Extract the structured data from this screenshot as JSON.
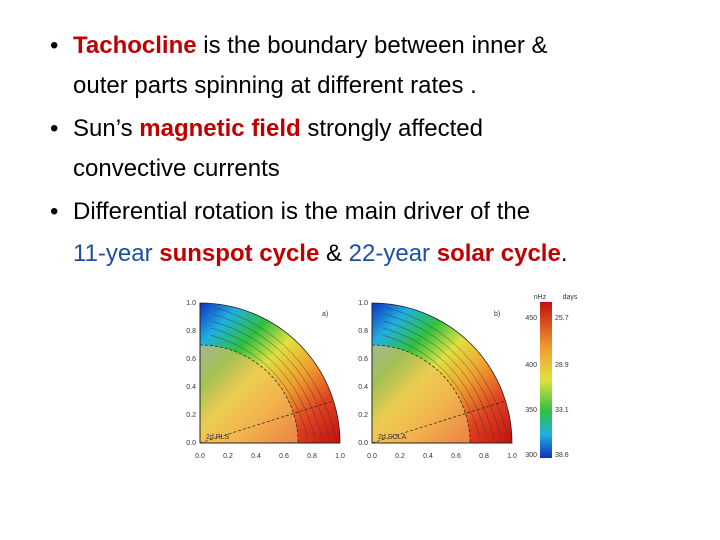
{
  "bullets": [
    {
      "lines": [
        [
          {
            "text": "Tachocline",
            "color": "#c00000",
            "bold": true
          },
          {
            "text": " is the boundary between inner &"
          }
        ],
        [
          {
            "text": "outer parts spinning at different rates ."
          }
        ]
      ]
    },
    {
      "lines": [
        [
          {
            "text": "Sun’s "
          },
          {
            "text": "magnetic field",
            "color": "#c00000",
            "bold": true
          },
          {
            "text": " strongly affected"
          }
        ],
        [
          {
            "text": "convective currents"
          }
        ]
      ]
    },
    {
      "lines": [
        [
          {
            "text": "Differential rotation is the main driver of the"
          }
        ],
        [
          {
            "text": "11-year ",
            "color": "#1f4fa0"
          },
          {
            "text": "sunspot cycle",
            "color": "#c00000",
            "bold": true
          },
          {
            "text": " & "
          },
          {
            "text": "22-year ",
            "color": "#1f4fa0"
          },
          {
            "text": "solar cycle",
            "color": "#c00000",
            "bold": true
          },
          {
            "text": "."
          }
        ]
      ]
    }
  ],
  "figure": {
    "panels": [
      {
        "label": "a)",
        "method": "2d RLS"
      },
      {
        "label": "b)",
        "method": "2d SOLA"
      }
    ],
    "axis_ticks": [
      "0.0",
      "0.2",
      "0.4",
      "0.6",
      "0.8",
      "1.0"
    ],
    "colorbar": {
      "units": [
        "nHz",
        "days"
      ],
      "ticks": [
        {
          "nhz": "450",
          "days": "25.7"
        },
        {
          "nhz": "400",
          "days": "28.9"
        },
        {
          "nhz": "350",
          "days": "33.1"
        },
        {
          "nhz": "300",
          "days": "38.6"
        }
      ]
    }
  }
}
